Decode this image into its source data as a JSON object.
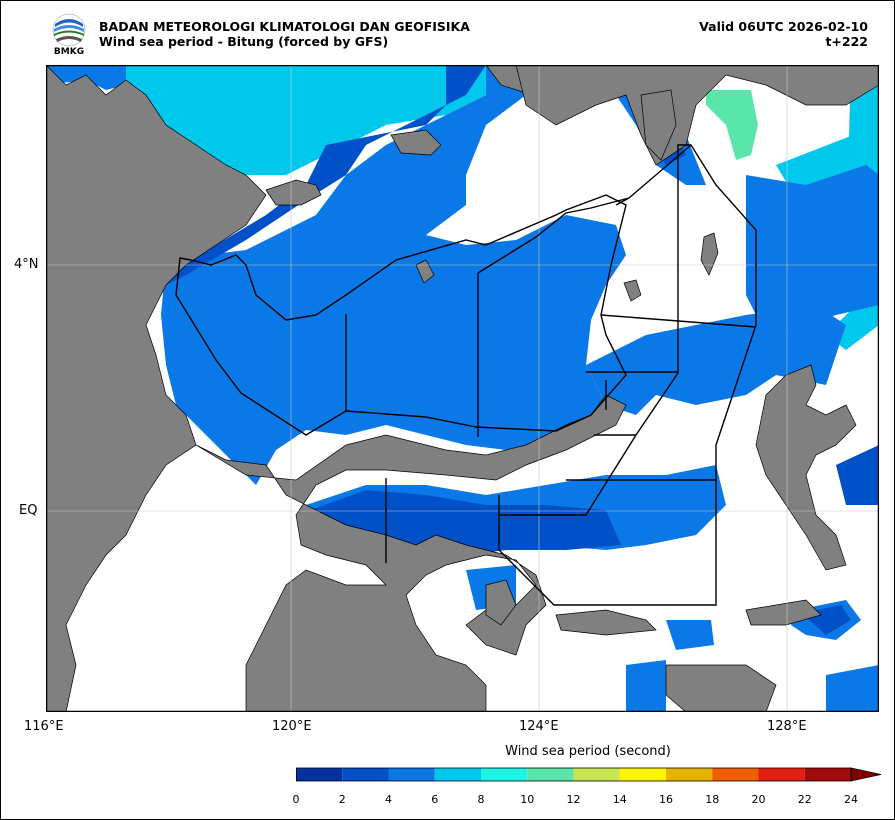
{
  "header": {
    "agency": "BADAN METEOROLOGI KLIMATOLOGI DAN GEOFISIKA",
    "product": "Wind sea period - Bitung (forced by GFS)",
    "valid": "Valid 06UTC 2026-02-10",
    "step": "t+222",
    "logo_text": "BMKG"
  },
  "axes": {
    "x_ticks": [
      "116°E",
      "120°E",
      "124°E",
      "128°E"
    ],
    "y_ticks": [
      "4°N",
      "EQ"
    ]
  },
  "colorbar": {
    "label": "Wind sea period (second)",
    "ticks": [
      "0",
      "2",
      "4",
      "6",
      "8",
      "10",
      "12",
      "14",
      "16",
      "18",
      "20",
      "22",
      "24"
    ],
    "colors": [
      "#0033a0",
      "#0050c8",
      "#0a78e6",
      "#00c8ec",
      "#1ef5e6",
      "#5ae6aa",
      "#c8e650",
      "#fff500",
      "#e6b400",
      "#ee5f00",
      "#e11e0f",
      "#a00a0a",
      "#820000"
    ]
  },
  "colors": {
    "land": "#808080",
    "no_data": "#ffffff",
    "boundary": "#000000"
  }
}
